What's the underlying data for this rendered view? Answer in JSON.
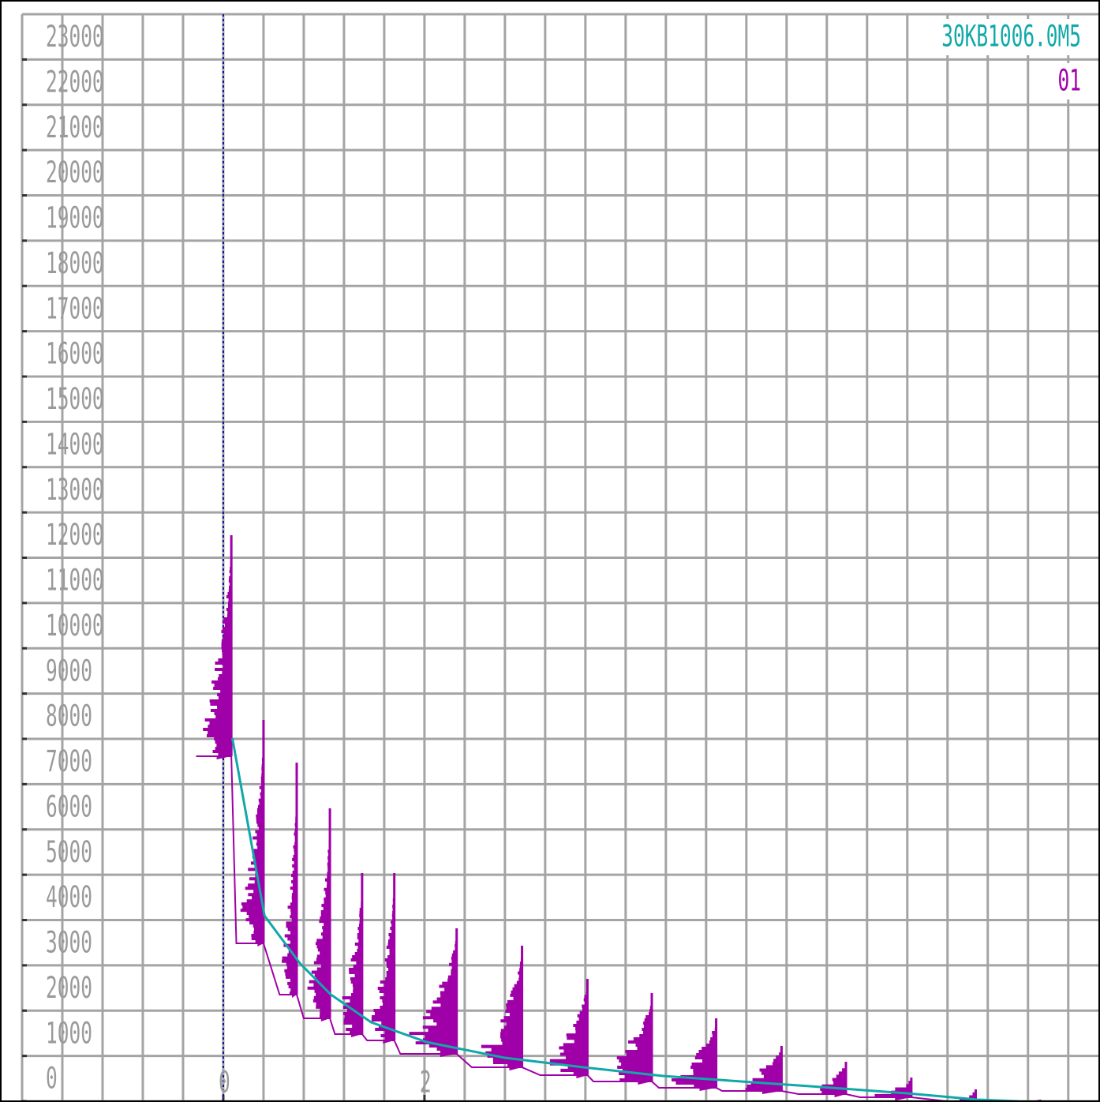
{
  "chart_data": {
    "type": "histogram-decay",
    "ylim": [
      0,
      24000
    ],
    "yticks": [
      0,
      1000,
      2000,
      3000,
      4000,
      5000,
      6000,
      7000,
      8000,
      9000,
      10000,
      11000,
      12000,
      13000,
      14000,
      15000,
      16000,
      17000,
      18000,
      19000,
      20000,
      21000,
      22000,
      23000
    ],
    "xlim": [
      -2,
      8.7
    ],
    "xticks": [
      0,
      2
    ],
    "xgrid": [
      -2,
      -1.6,
      -1.2,
      -0.8,
      -0.4,
      0,
      0.4,
      0.8,
      1.2,
      1.6,
      2,
      2.4,
      2.8,
      3.2,
      3.6,
      4,
      4.4,
      4.8,
      5.2,
      5.6,
      6,
      6.4,
      6.8,
      7.2,
      7.6,
      8,
      8.4
    ],
    "cursor_x": 0,
    "grid": true,
    "series": [
      {
        "name": "30KB1006.0M5",
        "color": "#10a8a8",
        "type": "line",
        "x": [
          0.09,
          0.41,
          0.76,
          1.07,
          1.47,
          2.02,
          2.8,
          3.58,
          4.37,
          5.15,
          5.94,
          6.8,
          7.5,
          7.9
        ],
        "values": [
          8017,
          4096,
          3050,
          2353,
          1743,
          1307,
          958,
          749,
          558,
          436,
          314,
          174,
          35,
          0
        ]
      },
      {
        "name": "01",
        "color": "#a000a8",
        "type": "clusters",
        "clusters": [
          {
            "x": 0.08,
            "left": -0.27,
            "high": 12496,
            "low": 7616
          },
          {
            "x": 0.4,
            "left": 0.13,
            "high": 8418,
            "low": 3486
          },
          {
            "x": 0.73,
            "left": 0.56,
            "high": 7476,
            "low": 2353
          },
          {
            "x": 1.06,
            "left": 0.8,
            "high": 6466,
            "low": 1830
          },
          {
            "x": 1.38,
            "left": 1.11,
            "high": 5037,
            "low": 1481
          },
          {
            "x": 1.7,
            "left": 1.43,
            "high": 5037,
            "low": 1342
          },
          {
            "x": 2.32,
            "left": 1.76,
            "high": 3817,
            "low": 1046
          },
          {
            "x": 2.97,
            "left": 2.47,
            "high": 3433,
            "low": 749
          },
          {
            "x": 3.62,
            "left": 3.15,
            "high": 2701,
            "low": 575
          },
          {
            "x": 4.26,
            "left": 3.68,
            "high": 2388,
            "low": 436
          },
          {
            "x": 4.9,
            "left": 4.33,
            "high": 1830,
            "low": 296
          },
          {
            "x": 5.55,
            "left": 4.96,
            "high": 1220,
            "low": 227
          },
          {
            "x": 6.19,
            "left": 5.72,
            "high": 871,
            "low": 157
          },
          {
            "x": 6.84,
            "left": 6.33,
            "high": 523,
            "low": 87
          },
          {
            "x": 7.48,
            "left": 7.19,
            "high": 261,
            "low": 0
          },
          {
            "x": 8.12,
            "left": 7.82,
            "high": 35,
            "low": 0
          }
        ]
      }
    ]
  }
}
